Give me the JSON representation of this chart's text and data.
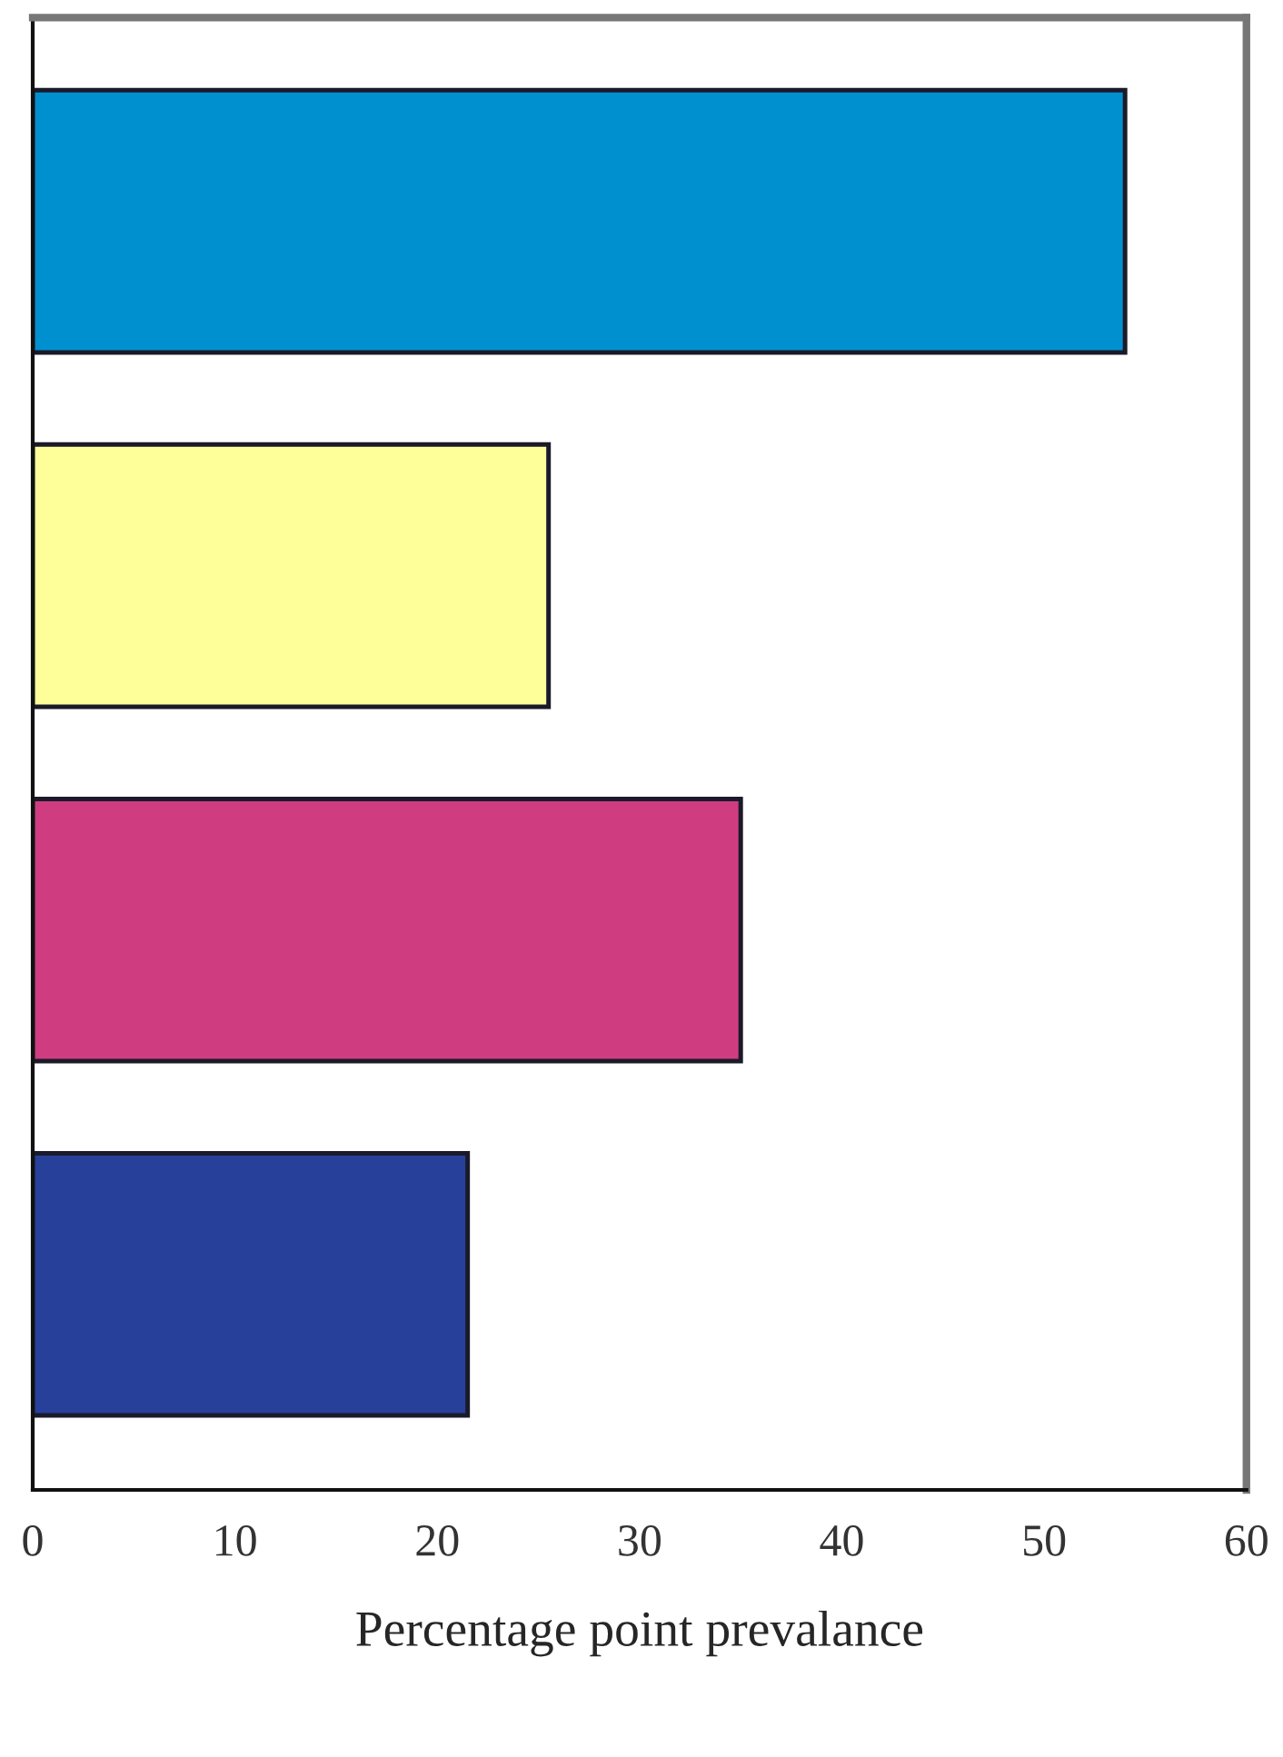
{
  "chart_data": {
    "type": "bar",
    "orientation": "horizontal",
    "xlabel": "Percentage point prevalance",
    "categories": [
      null,
      null,
      null,
      null
    ],
    "values": [
      54,
      25.5,
      35,
      21.5
    ],
    "colors": [
      "#0090d0",
      "#ffff99",
      "#d03c80",
      "#27409a"
    ],
    "xlim": [
      0,
      60
    ],
    "xticks": [
      0,
      10,
      20,
      30,
      40,
      50,
      60
    ],
    "grid": false,
    "legend": false
  }
}
